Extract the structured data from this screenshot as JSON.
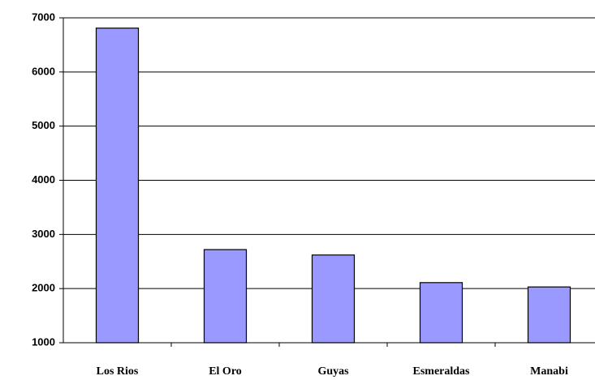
{
  "chart_data": {
    "type": "bar",
    "categories": [
      "Los Rios",
      "El Oro",
      "Guyas",
      "Esmeraldas",
      "Manabi"
    ],
    "values": [
      6810,
      2720,
      2620,
      2110,
      2030
    ],
    "color": "#9999ff",
    "ylim": [
      1000,
      7000
    ],
    "yticks": [
      1000,
      2000,
      3000,
      4000,
      5000,
      6000,
      7000
    ],
    "grid": true
  }
}
